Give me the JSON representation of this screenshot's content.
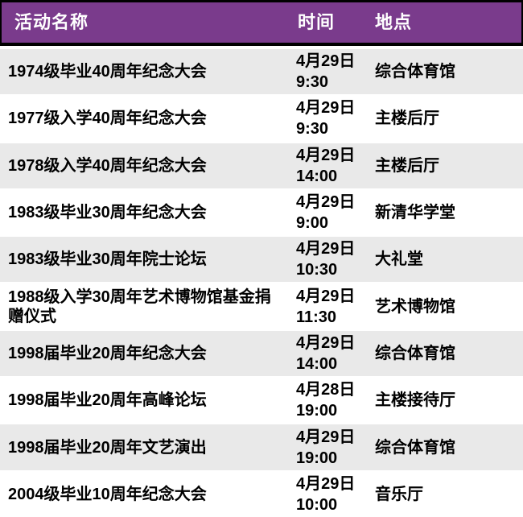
{
  "colors": {
    "header_bg": "#7A3B8C",
    "header_text": "#FFFFFF",
    "row_bg": "#FFFFFF",
    "row_alt_bg": "#E9E9E9",
    "text": "#000000",
    "border": "#000000"
  },
  "table": {
    "columns": [
      {
        "key": "name",
        "label": "活动名称"
      },
      {
        "key": "time",
        "label": "时间"
      },
      {
        "key": "location",
        "label": "地点"
      }
    ],
    "rows": [
      {
        "name": "1974级毕业40周年纪念大会",
        "date": "4月29日",
        "time": "9:30",
        "location": "综合体育馆"
      },
      {
        "name": "1977级入学40周年纪念大会",
        "date": "4月29日",
        "time": "9:30",
        "location": "主楼后厅"
      },
      {
        "name": "1978级入学40周年纪念大会",
        "date": "4月29日",
        "time": "14:00",
        "location": "主楼后厅"
      },
      {
        "name": "1983级毕业30周年纪念大会",
        "date": "4月29日",
        "time": "9:00",
        "location": "新清华学堂"
      },
      {
        "name": "1983级毕业30周年院士论坛",
        "date": "4月29日",
        "time": "10:30",
        "location": "大礼堂"
      },
      {
        "name": "1988级入学30周年艺术博物馆基金捐赠仪式",
        "date": "4月29日",
        "time": "11:30",
        "location": "艺术博物馆"
      },
      {
        "name": "1998届毕业20周年纪念大会",
        "date": "4月29日",
        "time": "14:00",
        "location": "综合体育馆"
      },
      {
        "name": "1998届毕业20周年高峰论坛",
        "date": "4月28日",
        "time": "19:00",
        "location": "主楼接待厅"
      },
      {
        "name": "1998届毕业20周年文艺演出",
        "date": "4月29日",
        "time": "19:00",
        "location": "综合体育馆"
      },
      {
        "name": "2004级毕业10周年纪念大会",
        "date": "4月29日",
        "time": "10:00",
        "location": "音乐厅"
      }
    ]
  }
}
